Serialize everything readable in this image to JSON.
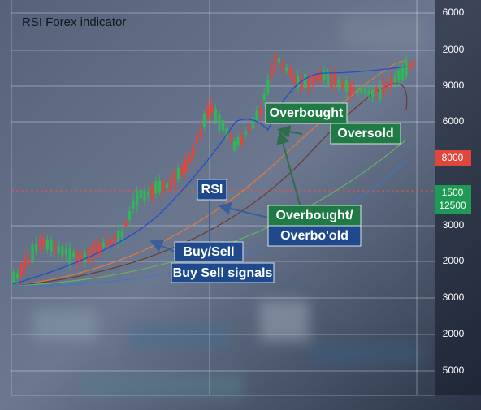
{
  "header": {
    "title": "RSI Forex indicator"
  },
  "axis_labels": [
    "6000",
    "2000",
    "9000",
    "6000",
    "3000",
    "2000",
    "3000",
    "2000",
    "5000"
  ],
  "badges": {
    "red": "8000",
    "green_top": "1500",
    "green_bottom": "12500"
  },
  "annotations": {
    "overbought": "Overbought",
    "oversold": "Oversold",
    "rsi": "RSI",
    "overbought_slash": "Overbought/",
    "overbo_old": "Overbo'old",
    "buy_sell": "Buy/Sell",
    "buy_sell_signals": "Buy Sell signals"
  }
}
